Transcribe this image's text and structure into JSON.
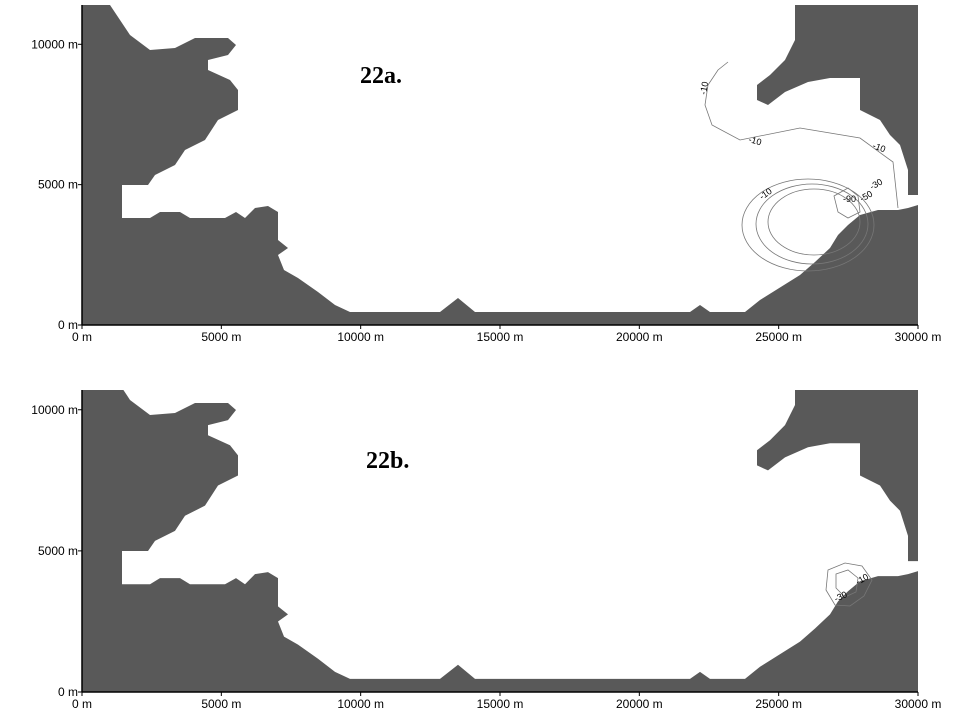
{
  "chart_data": [
    {
      "type": "contour",
      "title": "22a.",
      "xlim": [
        0,
        30000
      ],
      "ylim": [
        0,
        11400
      ],
      "xticks": [
        {
          "value": 0,
          "label": "0 m"
        },
        {
          "value": 5000,
          "label": "5000 m"
        },
        {
          "value": 10000,
          "label": "10000 m"
        },
        {
          "value": 15000,
          "label": "15000 m"
        },
        {
          "value": 20000,
          "label": "20000 m"
        },
        {
          "value": 25000,
          "label": "25000 m"
        },
        {
          "value": 30000,
          "label": "30000 m"
        }
      ],
      "yticks": [
        {
          "value": 0,
          "label": "0 m"
        },
        {
          "value": 5000,
          "label": "5000 m"
        },
        {
          "value": 10000,
          "label": "10000 m"
        }
      ],
      "contour_labels": [
        -10,
        -10,
        -10,
        -10,
        -30,
        -50,
        -90
      ]
    },
    {
      "type": "contour",
      "title": "22b.",
      "xlim": [
        0,
        30000
      ],
      "ylim": [
        0,
        10700
      ],
      "xticks": [
        {
          "value": 0,
          "label": "0 m"
        },
        {
          "value": 5000,
          "label": "5000 m"
        },
        {
          "value": 10000,
          "label": "10000 m"
        },
        {
          "value": 15000,
          "label": "15000 m"
        },
        {
          "value": 20000,
          "label": "20000 m"
        },
        {
          "value": 25000,
          "label": "25000 m"
        },
        {
          "value": 30000,
          "label": "30000 m"
        }
      ],
      "yticks": [
        {
          "value": 0,
          "label": "0 m"
        },
        {
          "value": 5000,
          "label": "5000 m"
        },
        {
          "value": 10000,
          "label": "10000 m"
        }
      ],
      "contour_labels": [
        -10,
        -30
      ]
    }
  ]
}
